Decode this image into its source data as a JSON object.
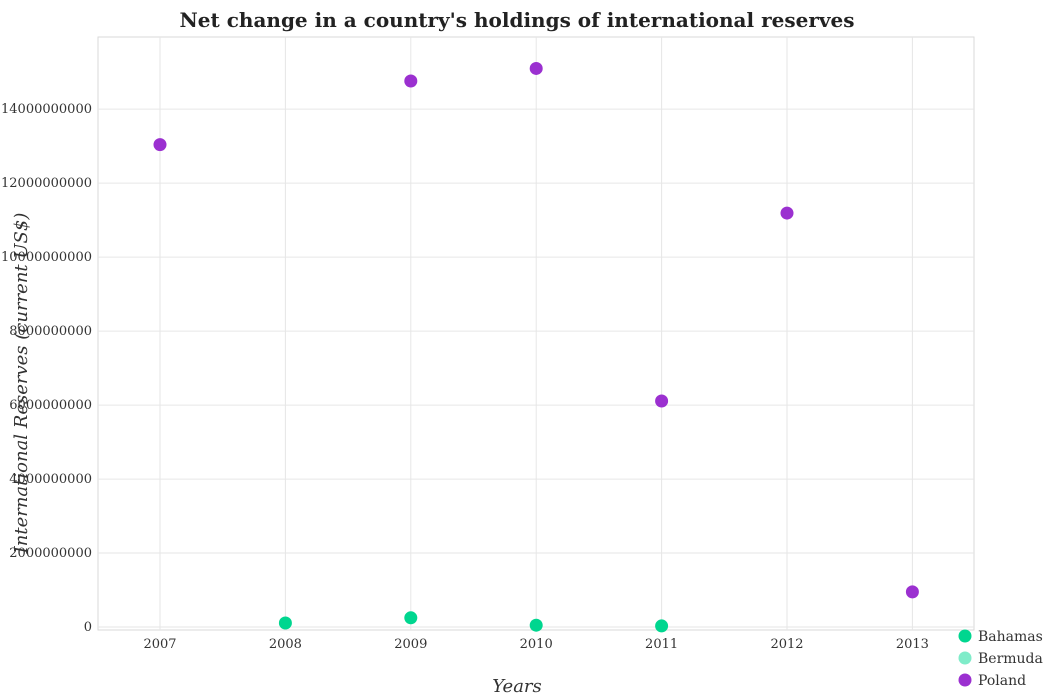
{
  "chart_data": {
    "type": "scatter",
    "title": "Net change in a country's holdings of international reserves",
    "xlabel": "Years",
    "ylabel": "International Reserves (current US$)",
    "categories": [
      "2007",
      "2008",
      "2009",
      "2010",
      "2011",
      "2012",
      "2013"
    ],
    "y_ticks": [
      "0",
      "2000000000",
      "4000000000",
      "6000000000",
      "8000000000",
      "10000000000",
      "12000000000",
      "14000000000"
    ],
    "ylim": [
      -80000000,
      15950000000
    ],
    "grid": true,
    "legend_position": "bottom-right",
    "series": [
      {
        "name": "Bahamas",
        "color": "#00d68f",
        "values": [
          null,
          110000000,
          250000000,
          50000000,
          30000000,
          null,
          null
        ]
      },
      {
        "name": "Bermuda",
        "color": "#7fecc9",
        "values": [
          null,
          null,
          null,
          null,
          null,
          null,
          null
        ]
      },
      {
        "name": "Poland",
        "color": "#9b30d0",
        "values": [
          13040000000,
          null,
          14760000000,
          15100000000,
          6110000000,
          11190000000,
          950000000
        ]
      }
    ]
  }
}
